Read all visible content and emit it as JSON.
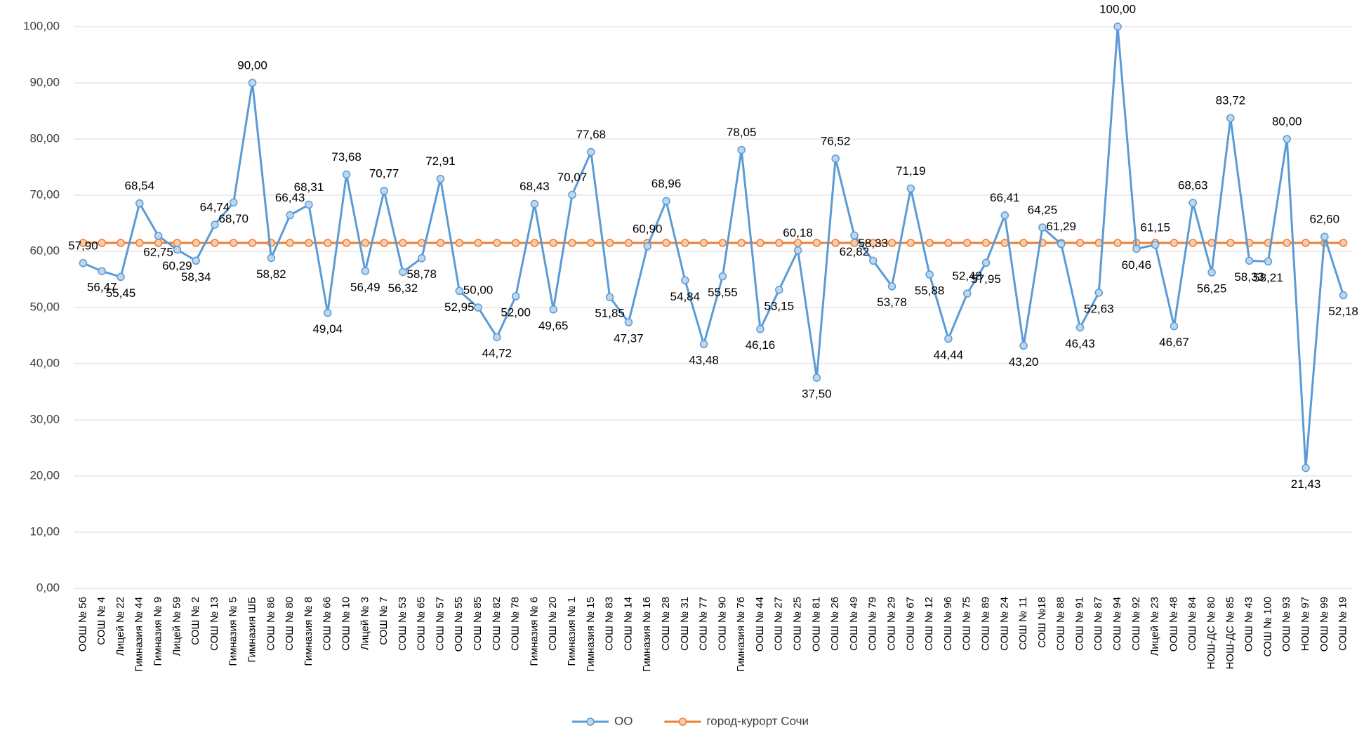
{
  "chart_data": {
    "type": "line",
    "categories": [
      "ООШ № 56",
      "СОШ № 4",
      "Лицей № 22",
      "Гимназия № 44",
      "Гимназия № 9",
      "Лицей № 59",
      "СОШ № 2",
      "СОШ № 13",
      "Гимназия № 5",
      "Гимназия ШБ",
      "СОШ № 86",
      "СОШ № 80",
      "Гимназия № 8",
      "СОШ № 66",
      "СОШ № 10",
      "Лицей № 3",
      "СОШ № 7",
      "СОШ № 53",
      "СОШ № 65",
      "СОШ № 57",
      "ООШ № 55",
      "СОШ № 85",
      "СОШ № 82",
      "СОШ № 78",
      "Гимназия № 6",
      "СОШ № 20",
      "Гимназия № 1",
      "Гимназия № 15",
      "СОШ № 83",
      "СОШ № 14",
      "Гимназия № 16",
      "СОШ № 28",
      "СОШ № 31",
      "СОШ № 77",
      "СОШ № 90",
      "Гимназия № 76",
      "ООШ № 44",
      "СОШ № 27",
      "СОШ № 25",
      "ООШ № 81",
      "СОШ № 26",
      "СОШ № 49",
      "СОШ № 79",
      "СОШ № 29",
      "СОШ № 67",
      "СОШ № 12",
      "СОШ № 96",
      "СОШ № 75",
      "СОШ № 89",
      "СОШ № 24",
      "СОШ № 11",
      "СОШ №18",
      "СОШ № 88",
      "СОШ № 91",
      "СОШ № 87",
      "СОШ № 94",
      "СОШ № 92",
      "Лицей № 23",
      "ООШ № 48",
      "СОШ № 84",
      "НОШ-ДС № 80",
      "НОШ-ДС № 85",
      "ООШ № 43",
      "СОШ № 100",
      "ООШ № 93",
      "НОШ № 97",
      "ООШ № 99",
      "СОШ № 19"
    ],
    "series": [
      {
        "name": "ОО",
        "color": "#5b9bd5",
        "values": [
          57.9,
          56.47,
          55.45,
          68.54,
          62.75,
          60.29,
          58.34,
          64.74,
          68.7,
          90.0,
          58.82,
          66.43,
          68.31,
          49.04,
          73.68,
          56.49,
          70.77,
          56.32,
          58.78,
          72.91,
          52.95,
          50.0,
          44.72,
          52.0,
          68.43,
          49.65,
          70.07,
          77.68,
          51.85,
          47.37,
          60.9,
          68.96,
          54.84,
          43.48,
          55.55,
          78.05,
          46.16,
          53.15,
          60.18,
          37.5,
          76.52,
          62.82,
          58.33,
          53.78,
          71.19,
          55.88,
          44.44,
          52.48,
          57.95,
          66.41,
          43.2,
          64.25,
          61.29,
          46.43,
          52.63,
          100.0,
          60.46,
          61.15,
          46.67,
          68.63,
          56.25,
          83.72,
          58.33,
          58.21,
          80.0,
          21.43,
          62.6,
          52.18
        ],
        "value_labels": [
          "57,90",
          "56,47",
          "55,45",
          "68,54",
          "62,75",
          "60,29",
          "58,34",
          "64,74",
          "68,70",
          "90,00",
          "58,82",
          "66,43",
          "68,31",
          "49,04",
          "73,68",
          "56,49",
          "70,77",
          "56,32",
          "58,78",
          "72,91",
          "52,95",
          "50,00",
          "44,72",
          "52,00",
          "68,43",
          "49,65",
          "70,07",
          "77,68",
          "51,85",
          "47,37",
          "60,90",
          "68,96",
          "54,84",
          "43,48",
          "55,55",
          "78,05",
          "46,16",
          "53,15",
          "60,18",
          "37,50",
          "76,52",
          "62,82",
          "58,33",
          "53,78",
          "71,19",
          "55,88",
          "44,44",
          "52,48",
          "57,95",
          "66,41",
          "43,20",
          "64,25",
          "61,29",
          "46,43",
          "52,63",
          "100,00",
          "60,46",
          "61,15",
          "46,67",
          "68,63",
          "56,25",
          "83,72",
          "58,33",
          "58,21",
          "80,00",
          "21,43",
          "62,60",
          "52,18"
        ]
      },
      {
        "name": "город-курорт Сочи",
        "color": "#ed7d31",
        "values": [
          61.5,
          61.5,
          61.5,
          61.5,
          61.5,
          61.5,
          61.5,
          61.5,
          61.5,
          61.5,
          61.5,
          61.5,
          61.5,
          61.5,
          61.5,
          61.5,
          61.5,
          61.5,
          61.5,
          61.5,
          61.5,
          61.5,
          61.5,
          61.5,
          61.5,
          61.5,
          61.5,
          61.5,
          61.5,
          61.5,
          61.5,
          61.5,
          61.5,
          61.5,
          61.5,
          61.5,
          61.5,
          61.5,
          61.5,
          61.5,
          61.5,
          61.5,
          61.5,
          61.5,
          61.5,
          61.5,
          61.5,
          61.5,
          61.5,
          61.5,
          61.5,
          61.5,
          61.5,
          61.5,
          61.5,
          61.5,
          61.5,
          61.5,
          61.5,
          61.5,
          61.5,
          61.5,
          61.5,
          61.5,
          61.5,
          61.5,
          61.5,
          61.5
        ]
      }
    ],
    "ylim": [
      0,
      100
    ],
    "yticks": [
      {
        "value": 0,
        "label": "0,00"
      },
      {
        "value": 10,
        "label": "10,00"
      },
      {
        "value": 20,
        "label": "20,00"
      },
      {
        "value": 30,
        "label": "30,00"
      },
      {
        "value": 40,
        "label": "40,00"
      },
      {
        "value": 50,
        "label": "50,00"
      },
      {
        "value": 60,
        "label": "60,00"
      },
      {
        "value": 70,
        "label": "70,00"
      },
      {
        "value": 80,
        "label": "80,00"
      },
      {
        "value": 90,
        "label": "90,00"
      },
      {
        "value": 100,
        "label": "100,00"
      }
    ],
    "grid": true,
    "legend": "bottom"
  }
}
